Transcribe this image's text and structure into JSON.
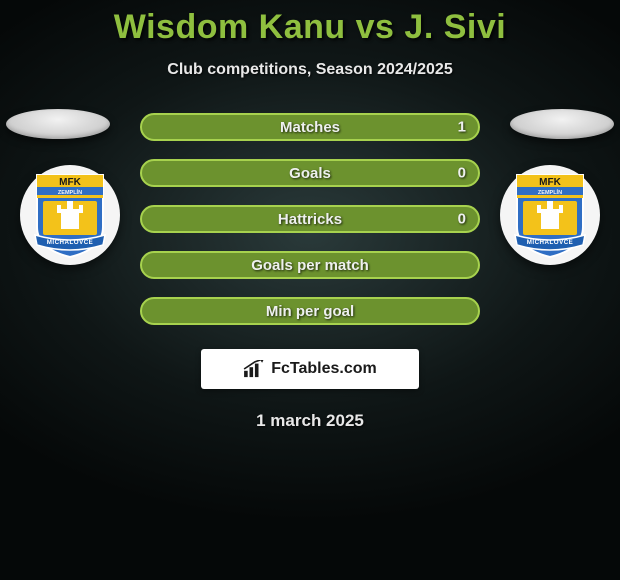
{
  "title_parts": {
    "left": "Wisdom Kanu",
    "vs": "vs",
    "right": "J. Sivi"
  },
  "title_color": "#8fbf3f",
  "subtitle": "Club competitions, Season 2024/2025",
  "date": "1 march 2025",
  "brand": {
    "text": "FcTables.com"
  },
  "background": {
    "type": "radial-dark",
    "center": "#2a3a3a",
    "edge": "#050808"
  },
  "ellipse_color": "#e0e0e0",
  "club_badge": {
    "name": "MFK Zemplín Michalovce",
    "top_text": "MFK",
    "sub_text": "ZEMPLÍN",
    "ribbon_text": "MICHALOVCE",
    "colors": {
      "shield": "#2f6ec4",
      "stripe": "#f3c21a",
      "ribbon": "#1f5fb0",
      "castle": "#fefefe",
      "outline": "#ffffff"
    }
  },
  "bars": {
    "style": {
      "height": 28,
      "radius": 14,
      "label_fontsize": 15,
      "label_color": "#eef0ee",
      "border_width": 2
    },
    "rows": [
      {
        "label": "Matches",
        "left": "",
        "right": "1",
        "fill": "#6c922e",
        "border": "#a7d24e"
      },
      {
        "label": "Goals",
        "left": "",
        "right": "0",
        "fill": "#6c922e",
        "border": "#a7d24e"
      },
      {
        "label": "Hattricks",
        "left": "",
        "right": "0",
        "fill": "#6c922e",
        "border": "#a7d24e"
      },
      {
        "label": "Goals per match",
        "left": "",
        "right": "",
        "fill": "#6c922e",
        "border": "#a7d24e"
      },
      {
        "label": "Min per goal",
        "left": "",
        "right": "",
        "fill": "#6c922e",
        "border": "#a7d24e"
      }
    ]
  }
}
